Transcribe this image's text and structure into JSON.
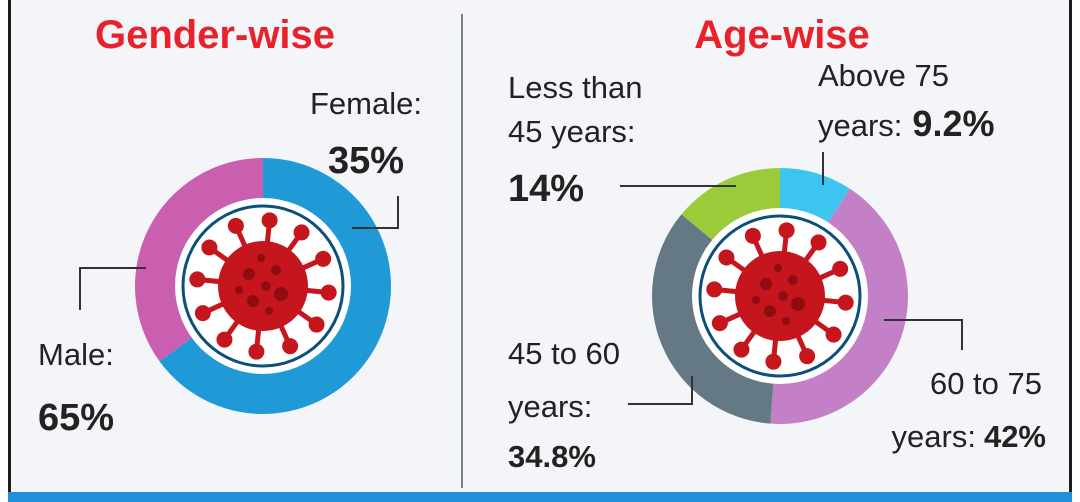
{
  "chart_data": [
    {
      "type": "pie",
      "title": "Gender-wise",
      "categories": [
        "Male",
        "Female"
      ],
      "values": [
        65,
        35
      ],
      "colors": [
        "#1f9ad6",
        "#c95fae"
      ],
      "labels": {
        "female_name": "Female:",
        "female_value": "35%",
        "male_name": "Male:",
        "male_value": "65%"
      }
    },
    {
      "type": "pie",
      "title": "Age-wise",
      "categories": [
        "Above 75 years",
        "60 to 75 years",
        "45 to 60 years",
        "Less than 45 years"
      ],
      "values": [
        9.2,
        42,
        34.8,
        14
      ],
      "colors": [
        "#3cc6ef",
        "#c480c6",
        "#657985",
        "#9bcb3b"
      ],
      "labels": {
        "lt45_line1": "Less than",
        "lt45_line2": "45 years:",
        "lt45_value": "14%",
        "above75_line1": "Above 75",
        "above75_line2": "years:",
        "above75_value": "9.2%",
        "mid_line1": "45 to 60",
        "mid_line2": "years:",
        "mid_value": "34.8%",
        "senior_line1": "60 to 75",
        "senior_line2": "years:",
        "senior_value": "42%"
      }
    }
  ],
  "icons": {
    "center": "virus-icon"
  }
}
